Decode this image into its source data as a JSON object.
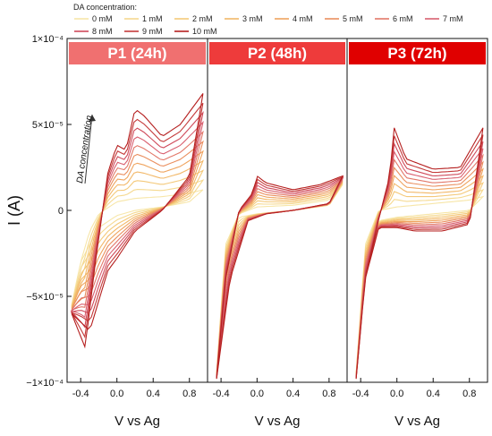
{
  "chart_data": {
    "type": "line",
    "legend": {
      "title": "DA concentration:",
      "placement": "top",
      "entries": [
        {
          "name": "0 mM",
          "color": "#f7e6a8"
        },
        {
          "name": "1 mM",
          "color": "#f5d990"
        },
        {
          "name": "2 mM",
          "color": "#f4c97a"
        },
        {
          "name": "3 mM",
          "color": "#f2b869"
        },
        {
          "name": "4 mM",
          "color": "#efa45f"
        },
        {
          "name": "5 mM",
          "color": "#ea8f5f"
        },
        {
          "name": "6 mM",
          "color": "#e27869"
        },
        {
          "name": "7 mM",
          "color": "#d96070"
        },
        {
          "name": "8 mM",
          "color": "#cf4a5a"
        },
        {
          "name": "9 mM",
          "color": "#c43a3a"
        },
        {
          "name": "10 mM",
          "color": "#b51f1f"
        }
      ]
    },
    "y_axis": {
      "label": "I (A)",
      "min": -0.0001,
      "max": 0.0001,
      "ticks": [
        {
          "value": 0.0001,
          "label": "1×10⁻⁴"
        },
        {
          "value": 5e-05,
          "label": "5×10⁻⁵"
        },
        {
          "value": 0,
          "label": "0"
        },
        {
          "value": -5e-05,
          "label": "−5×10⁻⁵"
        },
        {
          "value": -0.0001,
          "label": "−1×10⁻⁴"
        }
      ]
    },
    "x_axis": {
      "label": "V vs Ag",
      "min": -0.55,
      "max": 1.0,
      "ticks": [
        {
          "value": -0.4,
          "label": "-0.4"
        },
        {
          "value": 0.0,
          "label": "0.0"
        },
        {
          "value": 0.4,
          "label": "0.4"
        },
        {
          "value": 0.8,
          "label": "0.8"
        }
      ]
    },
    "concentrations_mM": [
      0,
      1,
      2,
      3,
      4,
      5,
      6,
      7,
      8,
      9,
      10
    ],
    "panels": [
      {
        "title": "P1 (24h)",
        "title_color": "#f07070",
        "annotation": "DA concentration",
        "series_points": {
          "0 mM": {
            "forward": [
              [
                -0.5,
                -5.5e-05
              ],
              [
                -0.4,
                -3e-05
              ],
              [
                -0.3,
                -1.2e-05
              ],
              [
                -0.2,
                -2e-06
              ],
              [
                0.0,
                5e-06
              ],
              [
                0.2,
                7e-06
              ],
              [
                0.5,
                8e-06
              ],
              [
                0.8,
                1e-05
              ],
              [
                0.95,
                1.2e-05
              ]
            ],
            "reverse": [
              [
                0.95,
                1.2e-05
              ],
              [
                0.8,
                5e-06
              ],
              [
                0.5,
                2e-06
              ],
              [
                0.2,
                0.0
              ],
              [
                0.0,
                -3e-06
              ],
              [
                -0.2,
                -1e-05
              ],
              [
                -0.4,
                -3e-05
              ],
              [
                -0.5,
                -5.5e-05
              ]
            ]
          },
          "10 mM": {
            "forward": [
              [
                -0.5,
                -6e-05
              ],
              [
                -0.35,
                -8e-05
              ],
              [
                -0.25,
                -3.5e-05
              ],
              [
                -0.1,
                2.2e-05
              ],
              [
                0.0,
                3.8e-05
              ],
              [
                0.1,
                3.5e-05
              ],
              [
                0.2,
                5.9e-05
              ],
              [
                0.3,
                5.5e-05
              ],
              [
                0.5,
                4.3e-05
              ],
              [
                0.7,
                5e-05
              ],
              [
                0.95,
                6.8e-05
              ]
            ],
            "reverse": [
              [
                0.95,
                6.8e-05
              ],
              [
                0.8,
                2e-05
              ],
              [
                0.5,
                0.0
              ],
              [
                0.3,
                -8e-06
              ],
              [
                0.2,
                -1.2e-05
              ],
              [
                0.0,
                -2.8e-05
              ],
              [
                -0.1,
                -3.5e-05
              ],
              [
                -0.3,
                -7e-05
              ],
              [
                -0.5,
                -6e-05
              ]
            ]
          }
        }
      },
      {
        "title": "P2 (48h)",
        "title_color": "#ee3b3b",
        "series_points": {
          "0 mM": {
            "forward": [
              [
                -0.45,
                -9.5e-05
              ],
              [
                -0.35,
                -2e-05
              ],
              [
                -0.2,
                -2e-06
              ],
              [
                0.0,
                2e-06
              ],
              [
                0.4,
                3e-06
              ],
              [
                0.8,
                6e-06
              ],
              [
                0.95,
                1.5e-05
              ]
            ],
            "reverse": [
              [
                0.95,
                1.5e-05
              ],
              [
                0.8,
                3e-06
              ],
              [
                0.4,
                0.0
              ],
              [
                0.0,
                -2e-06
              ],
              [
                -0.2,
                -4e-06
              ],
              [
                -0.35,
                -2.5e-05
              ],
              [
                -0.45,
                -9.5e-05
              ]
            ]
          },
          "10 mM": {
            "forward": [
              [
                -0.45,
                -9.8e-05
              ],
              [
                -0.35,
                -4e-05
              ],
              [
                -0.2,
                0.0
              ],
              [
                -0.05,
                1e-05
              ],
              [
                0.0,
                2e-05
              ],
              [
                0.1,
                1.6e-05
              ],
              [
                0.4,
                1.2e-05
              ],
              [
                0.7,
                1.5e-05
              ],
              [
                0.95,
                2e-05
              ]
            ],
            "reverse": [
              [
                0.95,
                2e-05
              ],
              [
                0.8,
                4e-06
              ],
              [
                0.4,
                0.0
              ],
              [
                0.1,
                -2e-06
              ],
              [
                -0.1,
                -6e-06
              ],
              [
                -0.3,
                -4e-05
              ],
              [
                -0.45,
                -9.8e-05
              ]
            ]
          }
        }
      },
      {
        "title": "P3 (72h)",
        "title_color": "#e00000",
        "series_points": {
          "0 mM": {
            "forward": [
              [
                -0.45,
                -9.5e-05
              ],
              [
                -0.35,
                -2e-05
              ],
              [
                -0.2,
                0.0
              ],
              [
                0.0,
                2e-06
              ],
              [
                0.4,
                4e-06
              ],
              [
                0.8,
                6e-06
              ],
              [
                0.95,
                8e-06
              ]
            ],
            "reverse": [
              [
                0.95,
                8e-06
              ],
              [
                0.8,
                0.0
              ],
              [
                0.4,
                -2e-06
              ],
              [
                0.0,
                -4e-06
              ],
              [
                -0.2,
                -6e-06
              ],
              [
                -0.35,
                -3e-05
              ],
              [
                -0.45,
                -9.5e-05
              ]
            ]
          },
          "10 mM": {
            "forward": [
              [
                -0.45,
                -9.8e-05
              ],
              [
                -0.35,
                -4e-05
              ],
              [
                -0.2,
                -5e-06
              ],
              [
                -0.08,
                2e-05
              ],
              [
                -0.03,
                4.8e-05
              ],
              [
                0.1,
                3e-05
              ],
              [
                0.4,
                2.4e-05
              ],
              [
                0.7,
                2.5e-05
              ],
              [
                0.95,
                4.8e-05
              ]
            ],
            "reverse": [
              [
                0.95,
                4.8e-05
              ],
              [
                0.8,
                -8e-06
              ],
              [
                0.5,
                -1.2e-05
              ],
              [
                0.2,
                -1.2e-05
              ],
              [
                0.0,
                -1e-05
              ],
              [
                -0.2,
                -1e-05
              ],
              [
                -0.35,
                -4e-05
              ],
              [
                -0.45,
                -9.8e-05
              ]
            ]
          }
        }
      }
    ]
  }
}
